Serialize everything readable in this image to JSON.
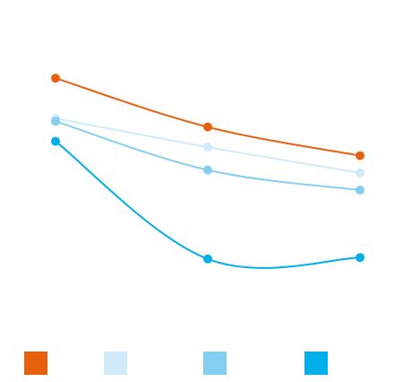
{
  "chart_data": {
    "type": "line",
    "title": "",
    "xlabel": "",
    "ylabel": "",
    "categories": [
      "",
      "",
      ""
    ],
    "grid": false,
    "legend_position": "bottom",
    "ylim": [
      0,
      100
    ],
    "series": [
      {
        "color": "#E8600E",
        "values": [
          79,
          62,
          52
        ]
      },
      {
        "color": "#D2EBFB",
        "values": [
          65,
          55,
          46
        ]
      },
      {
        "color": "#84CEF2",
        "values": [
          64,
          47,
          40
        ]
      },
      {
        "color": "#00AEEA",
        "values": [
          57,
          16,
          16.5
        ]
      }
    ]
  }
}
